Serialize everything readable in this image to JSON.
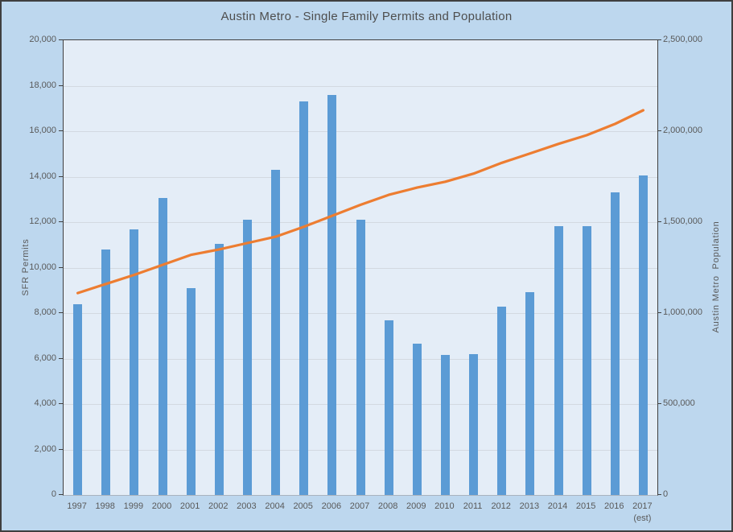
{
  "window_title": "Austin Metro - Single Family Permits and Population",
  "colors": {
    "outer_background": "#bdd7ee",
    "plot_background": "#e4edf7",
    "bar": "#5b9bd5",
    "line": "#ed7d31",
    "gridline": "#d3d9e1",
    "axis_text": "#595959",
    "title_text": "#4e4e4e"
  },
  "axes": {
    "left": {
      "title": "SFR Permits",
      "tick_labels_top_to_bottom": [
        "20,000",
        "18,000",
        "16,000",
        "14,000",
        "12,000",
        "10,000",
        "8,000",
        "6,000",
        "4,000",
        "2,000",
        "0"
      ]
    },
    "right": {
      "title": "Austin Metro  Population",
      "tick_labels_top_to_bottom": [
        "2,500,000",
        "2,000,000",
        "1,500,000",
        "1,000,000",
        "500,000",
        "0"
      ]
    },
    "x": {
      "tick_labels": [
        "1997",
        "1998",
        "1999",
        "2000",
        "2001",
        "2002",
        "2003",
        "2004",
        "2005",
        "2006",
        "2007",
        "2008",
        "2009",
        "2010",
        "2011",
        "2012",
        "2013",
        "2014",
        "2015",
        "2016",
        "2017"
      ],
      "note": "(est)",
      "note_applies_to": "2017"
    }
  },
  "chart_data": {
    "type": "combo",
    "title": "Austin Metro - Single Family Permits and Population",
    "categories": [
      "1997",
      "1998",
      "1999",
      "2000",
      "2001",
      "2002",
      "2003",
      "2004",
      "2005",
      "2006",
      "2007",
      "2008",
      "2009",
      "2010",
      "2011",
      "2012",
      "2013",
      "2014",
      "2015",
      "2016",
      "2017"
    ],
    "last_category_note": "(est)",
    "series": [
      {
        "name": "SFR Permits",
        "chart_type": "bar",
        "axis": "left",
        "color": "#5b9bd5",
        "values": [
          8400,
          10800,
          11700,
          13050,
          9100,
          11050,
          12100,
          14300,
          17300,
          17600,
          12100,
          7700,
          6660,
          6150,
          6190,
          8270,
          8930,
          11830,
          11830,
          13310,
          14070
        ]
      },
      {
        "name": "Austin Metro Population",
        "chart_type": "line",
        "axis": "right",
        "color": "#ed7d31",
        "values": [
          1110000,
          1160000,
          1210000,
          1265000,
          1320000,
          1350000,
          1385000,
          1420000,
          1475000,
          1535000,
          1595000,
          1650000,
          1690000,
          1722000,
          1767000,
          1826000,
          1878000,
          1930000,
          1978000,
          2040000,
          2115000
        ]
      }
    ],
    "left_axis": {
      "label": "SFR Permits",
      "min": 0,
      "max": 20000,
      "step": 2000
    },
    "right_axis": {
      "label": "Austin Metro  Population",
      "min": 0,
      "max": 2500000,
      "step": 500000
    },
    "grid": true,
    "legend": "none"
  }
}
